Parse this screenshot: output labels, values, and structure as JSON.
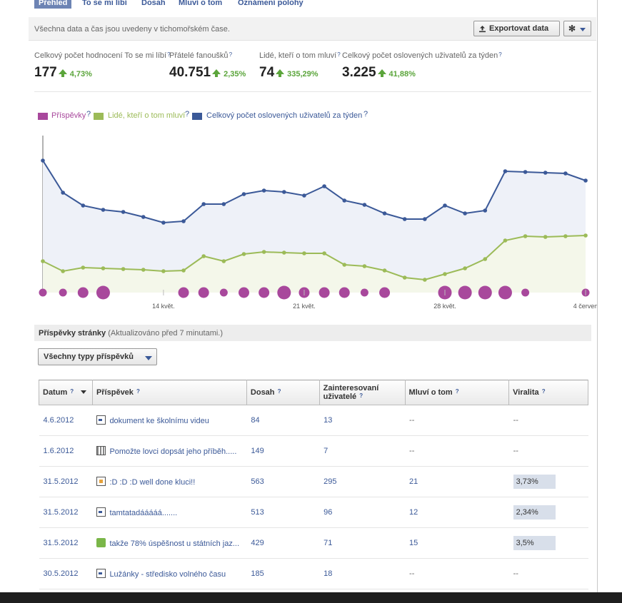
{
  "tabs": [
    {
      "label": "Přehled",
      "active": true
    },
    {
      "label": "To se mi líbí"
    },
    {
      "label": "Dosah"
    },
    {
      "label": "Mluví o tom"
    },
    {
      "label": "Oznámení polohy"
    }
  ],
  "infobar": {
    "text": "Všechna data a čas jsou uvedeny v tichomořském čase.",
    "export_label": "Exportovat data"
  },
  "stats": [
    {
      "label": "Celkový počet hodnocení To se mi líbí",
      "value": "177",
      "change": "4,73%"
    },
    {
      "label": "Přátelé fanoušků",
      "value": "40.751",
      "change": "2,35%"
    },
    {
      "label": "Lidé, kteří o tom mluví",
      "value": "74",
      "change": "335,29%"
    },
    {
      "label": "Celkový počet oslovených uživatelů za týden",
      "value": "3.225",
      "change": "41,88%"
    }
  ],
  "legend": [
    {
      "label": "Příspěvky",
      "color": "#a8489c"
    },
    {
      "label": "Lidé, kteří o tom mluví",
      "color": "#9cbb58"
    },
    {
      "label": "Celkový počet oslovených uživatelů za týden",
      "color": "#3b5998"
    }
  ],
  "chart_data": {
    "type": "line",
    "x_ticks": [
      "14 květ.",
      "21 květ.",
      "28 květ.",
      "4 červen"
    ],
    "series": [
      {
        "name": "Celkový počet oslovených uživatelů za týden",
        "color": "#3b5998",
        "values": [
          185,
          140,
          122,
          116,
          113,
          106,
          98,
          100,
          124,
          124,
          138,
          143,
          141,
          136,
          149,
          129,
          123,
          111,
          103,
          103,
          122,
          111,
          115,
          170,
          169,
          168,
          167,
          157
        ]
      },
      {
        "name": "Lidé, kteří o tom mluví",
        "color": "#9cbb58",
        "values": [
          44,
          30,
          35,
          34,
          33,
          32,
          30,
          31,
          51,
          44,
          54,
          57,
          56,
          55,
          55,
          39,
          37,
          31,
          21,
          18,
          26,
          34,
          47,
          73,
          79,
          78,
          79,
          80
        ]
      },
      {
        "name": "Příspěvky",
        "color": "#a8489c",
        "values": [
          1,
          1,
          2,
          3,
          0,
          0,
          0,
          2,
          2,
          1,
          2,
          2,
          3,
          2,
          2,
          2,
          1,
          2,
          0,
          0,
          3,
          3,
          3,
          3,
          1,
          0,
          0,
          1
        ]
      }
    ]
  },
  "section": {
    "title": "Příspěvky stránky",
    "subtitle": "(Aktualizováno před 7 minutami.)",
    "filter_label": "Všechny typy příspěvků"
  },
  "table": {
    "headers": [
      {
        "label": "Datum",
        "q": "?"
      },
      {
        "label": "Příspěvek",
        "q": "?"
      },
      {
        "label": "Dosah",
        "q": "?"
      },
      {
        "label": "Zainteresovaní uživatelé",
        "q": "?"
      },
      {
        "label": "Mluví o tom",
        "q": "?"
      },
      {
        "label": "Viralita",
        "q": "?"
      }
    ],
    "rows": [
      {
        "date": "4.6.2012",
        "icon": "note",
        "post": "dokument ke školnímu videu",
        "reach": "84",
        "engaged": "13",
        "talking": "--",
        "virality": "--"
      },
      {
        "date": "1.6.2012",
        "icon": "video",
        "post": "Pomožte lovci dopsát jeho příběh.....",
        "reach": "149",
        "engaged": "7",
        "talking": "--",
        "virality": "--"
      },
      {
        "date": "31.5.2012",
        "icon": "photo",
        "post": ":D :D :D well done kluci!!",
        "reach": "563",
        "engaged": "295",
        "talking": "21",
        "virality": "3,73%"
      },
      {
        "date": "31.5.2012",
        "icon": "note",
        "post": "tamtatadááááá.......",
        "reach": "513",
        "engaged": "96",
        "talking": "12",
        "virality": "2,34%"
      },
      {
        "date": "31.5.2012",
        "icon": "status",
        "post": "takže 78% úspěšnost u státních jaz...",
        "reach": "429",
        "engaged": "71",
        "talking": "15",
        "virality": "3,5%"
      },
      {
        "date": "30.5.2012",
        "icon": "note",
        "post": "Lužánky - středisko volného času",
        "reach": "185",
        "engaged": "18",
        "talking": "--",
        "virality": "--"
      }
    ]
  }
}
